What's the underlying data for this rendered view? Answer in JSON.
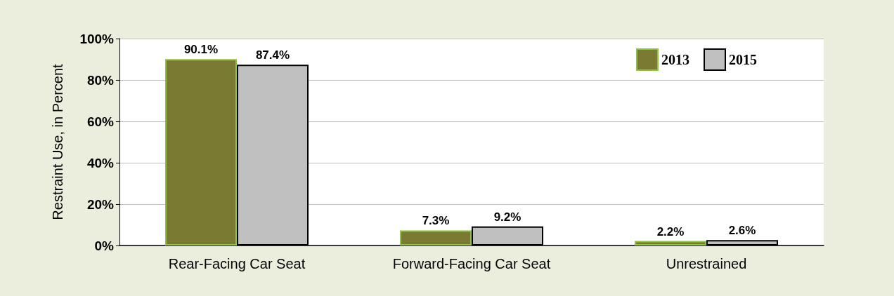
{
  "chart_data": {
    "type": "bar",
    "ylabel": "Restraint Use, in Percent",
    "categories": [
      "Rear-Facing Car Seat",
      "Forward-Facing Car Seat",
      "Unrestrained"
    ],
    "series": [
      {
        "name": "2013",
        "color": "#7a7a33",
        "values": [
          90.1,
          7.3,
          2.2
        ],
        "value_labels": [
          "90.1%",
          "7.3%",
          "2.2%"
        ]
      },
      {
        "name": "2015",
        "color": "#c0c0c0",
        "values": [
          87.4,
          9.2,
          2.6
        ],
        "value_labels": [
          "87.4%",
          "9.2%",
          "2.6%"
        ]
      }
    ],
    "ylim": [
      0,
      100
    ],
    "yticks": [
      {
        "value": 0,
        "label": "0%"
      },
      {
        "value": 20,
        "label": "20%"
      },
      {
        "value": 40,
        "label": "40%"
      },
      {
        "value": 60,
        "label": "60%"
      },
      {
        "value": 80,
        "label": "80%"
      },
      {
        "value": 100,
        "label": "100%"
      }
    ],
    "grid": "y",
    "legend": "top right"
  }
}
